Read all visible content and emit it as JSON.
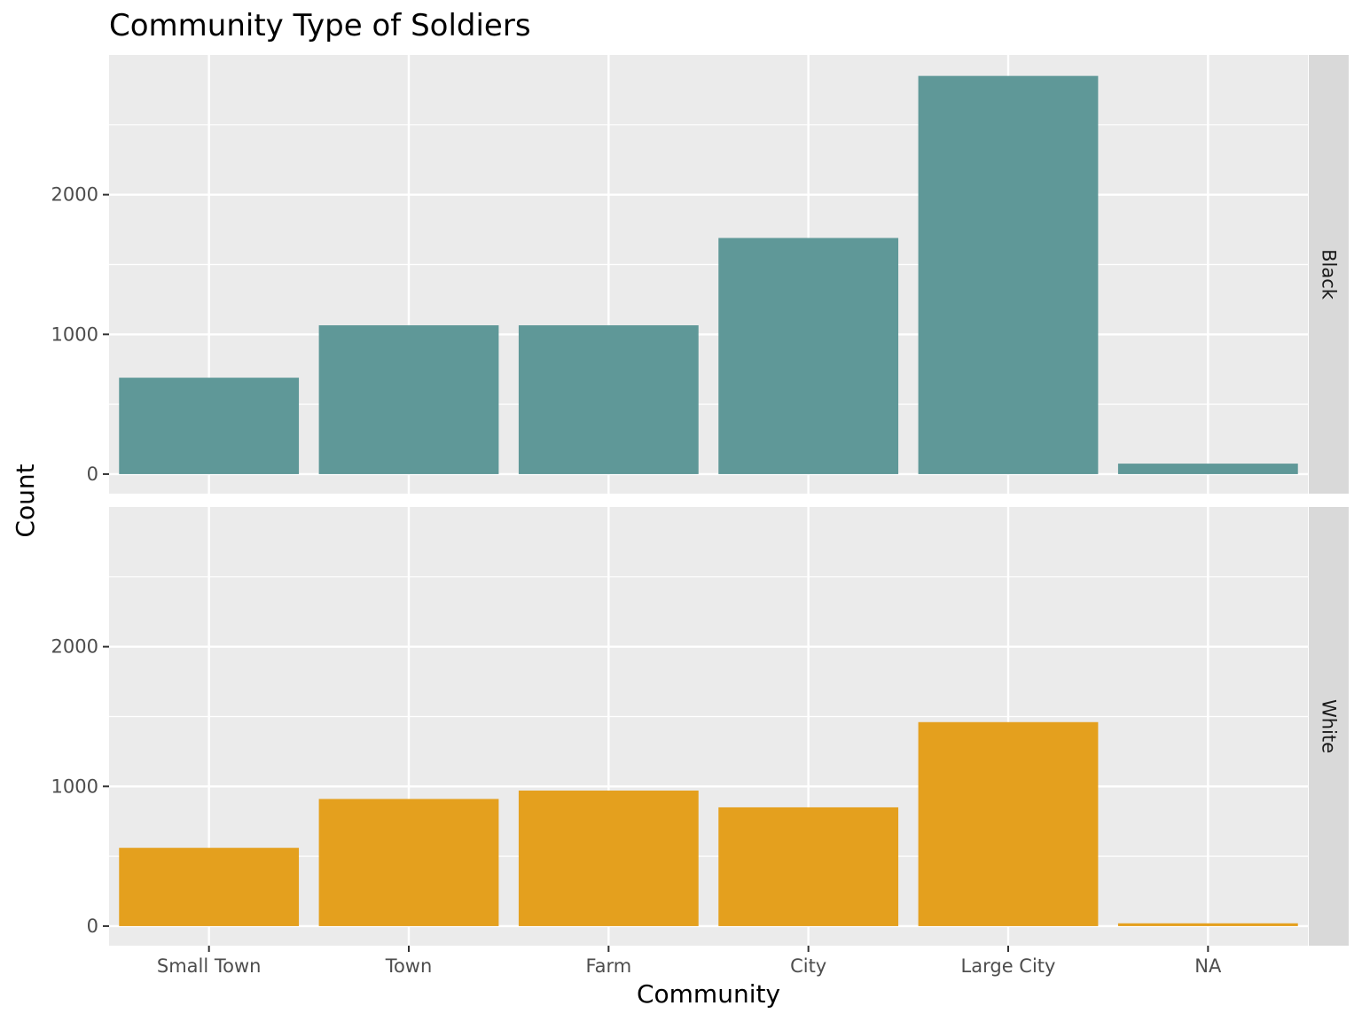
{
  "chart_data": {
    "type": "bar",
    "title": "Community Type of Soldiers",
    "xlabel": "Community",
    "ylabel": "Count",
    "categories": [
      "Small Town",
      "Town",
      "Farm",
      "City",
      "Large City",
      "NA"
    ],
    "ylim": [
      -140,
      3000
    ],
    "yticks": [
      0,
      1000,
      2000
    ],
    "ytick_labels": [
      "0",
      "1000",
      "2000"
    ],
    "grid": true,
    "facets": [
      {
        "strip_label": "Black",
        "color": "#5f9898",
        "values": [
          690,
          1065,
          1065,
          1690,
          2850,
          75
        ]
      },
      {
        "strip_label": "White",
        "color": "#e4a01e",
        "values": [
          560,
          910,
          970,
          850,
          1460,
          20
        ]
      }
    ]
  }
}
